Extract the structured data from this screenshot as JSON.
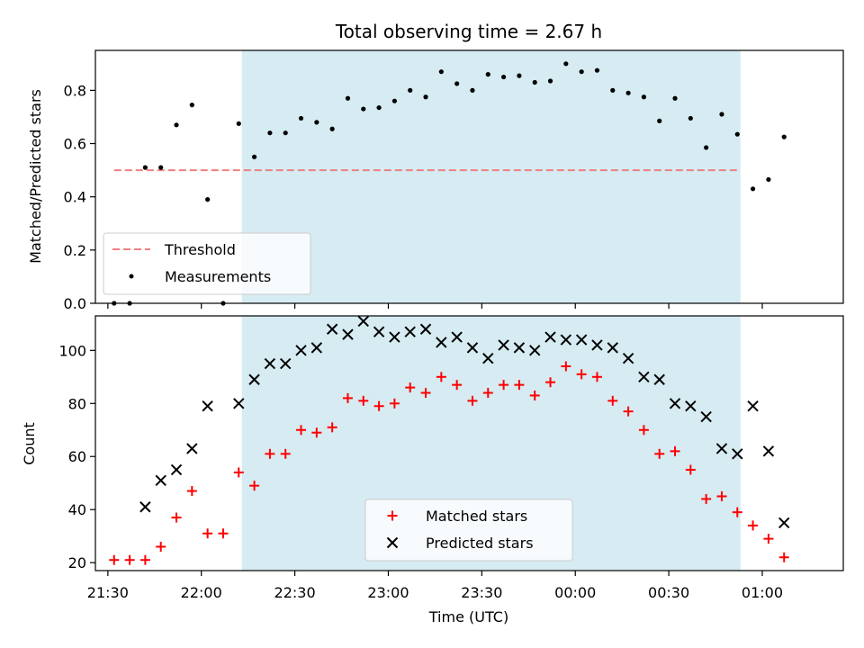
{
  "chart_data": {
    "type": "scatter",
    "title": "Total observing time = 2.67 h",
    "colors": {
      "span": "#add8e6",
      "threshold": "#f08080",
      "measurement": "#000000",
      "matched": "#ff0000",
      "predicted": "#000000"
    },
    "xlabel": "Time (UTC)",
    "x_ticks": [
      "21:30",
      "22:00",
      "22:30",
      "23:00",
      "23:30",
      "00:00",
      "00:30",
      "01:00"
    ],
    "xlim": [
      "21:26",
      "01:26"
    ],
    "observing_window": [
      "22:13",
      "00:53"
    ],
    "top": {
      "ylabel": "Matched/Predicted stars",
      "ylim": [
        0,
        0.95
      ],
      "y_ticks": [
        "0.0",
        "0.2",
        "0.4",
        "0.6",
        "0.8"
      ],
      "y_tick_values": [
        0,
        0.2,
        0.4,
        0.6,
        0.8
      ],
      "threshold": {
        "name": "Threshold",
        "y": 0.5,
        "x_range": [
          "21:32",
          "00:53"
        ]
      },
      "measurements": {
        "name": "Measurements",
        "x": [
          "21:32",
          "21:37",
          "21:42",
          "21:47",
          "21:52",
          "21:57",
          "22:02",
          "22:07",
          "22:12",
          "22:17",
          "22:22",
          "22:27",
          "22:32",
          "22:37",
          "22:42",
          "22:47",
          "22:52",
          "22:57",
          "23:02",
          "23:07",
          "23:12",
          "23:17",
          "23:22",
          "23:27",
          "23:32",
          "23:37",
          "23:42",
          "23:47",
          "23:52",
          "23:57",
          "00:02",
          "00:07",
          "00:12",
          "00:17",
          "00:22",
          "00:27",
          "00:32",
          "00:37",
          "00:42",
          "00:47",
          "00:52",
          "00:57",
          "01:02",
          "01:07"
        ],
        "y": [
          0.0,
          0.0,
          0.51,
          0.51,
          0.67,
          0.745,
          0.39,
          0.0,
          0.675,
          0.55,
          0.64,
          0.64,
          0.695,
          0.68,
          0.655,
          0.77,
          0.73,
          0.735,
          0.76,
          0.8,
          0.775,
          0.87,
          0.825,
          0.8,
          0.86,
          0.85,
          0.855,
          0.83,
          0.835,
          0.9,
          0.87,
          0.875,
          0.8,
          0.79,
          0.775,
          0.685,
          0.77,
          0.695,
          0.585,
          0.71,
          0.635,
          0.43,
          0.465,
          0.625
        ]
      }
    },
    "bottom": {
      "ylabel": "Count",
      "ylim": [
        17,
        113
      ],
      "y_ticks": [
        "20",
        "40",
        "60",
        "80",
        "100"
      ],
      "y_tick_values": [
        20,
        40,
        60,
        80,
        100
      ],
      "matched": {
        "name": "Matched stars",
        "x": [
          "21:32",
          "21:37",
          "21:42",
          "21:47",
          "21:52",
          "21:57",
          "22:02",
          "22:07",
          "22:12",
          "22:17",
          "22:22",
          "22:27",
          "22:32",
          "22:37",
          "22:42",
          "22:47",
          "22:52",
          "22:57",
          "23:02",
          "23:07",
          "23:12",
          "23:17",
          "23:22",
          "23:27",
          "23:32",
          "23:37",
          "23:42",
          "23:47",
          "23:52",
          "23:57",
          "00:02",
          "00:07",
          "00:12",
          "00:17",
          "00:22",
          "00:27",
          "00:32",
          "00:37",
          "00:42",
          "00:47",
          "00:52",
          "00:57",
          "01:02",
          "01:07"
        ],
        "y": [
          21,
          21,
          21,
          26,
          37,
          47,
          31,
          31,
          54,
          49,
          61,
          61,
          70,
          69,
          71,
          82,
          81,
          79,
          80,
          86,
          84,
          90,
          87,
          81,
          84,
          87,
          87,
          83,
          88,
          94,
          91,
          90,
          81,
          77,
          70,
          61,
          62,
          55,
          44,
          45,
          39,
          34,
          29,
          22
        ]
      },
      "predicted": {
        "name": "Predicted stars",
        "x": [
          "21:42",
          "21:47",
          "21:52",
          "21:57",
          "22:02",
          "22:12",
          "22:17",
          "22:22",
          "22:27",
          "22:32",
          "22:37",
          "22:42",
          "22:47",
          "22:52",
          "22:57",
          "23:02",
          "23:07",
          "23:12",
          "23:17",
          "23:22",
          "23:27",
          "23:32",
          "23:37",
          "23:42",
          "23:47",
          "23:52",
          "23:57",
          "00:02",
          "00:07",
          "00:12",
          "00:17",
          "00:22",
          "00:27",
          "00:32",
          "00:37",
          "00:42",
          "00:47",
          "00:52",
          "00:57",
          "01:02",
          "01:07"
        ],
        "y": [
          41,
          51,
          55,
          63,
          79,
          80,
          89,
          95,
          95,
          100,
          101,
          108,
          106,
          111,
          107,
          105,
          107,
          108,
          103,
          105,
          101,
          97,
          102,
          101,
          100,
          105,
          104,
          104,
          102,
          101,
          97,
          90,
          89,
          80,
          79,
          75,
          63,
          61,
          79,
          62,
          35
        ]
      }
    }
  }
}
